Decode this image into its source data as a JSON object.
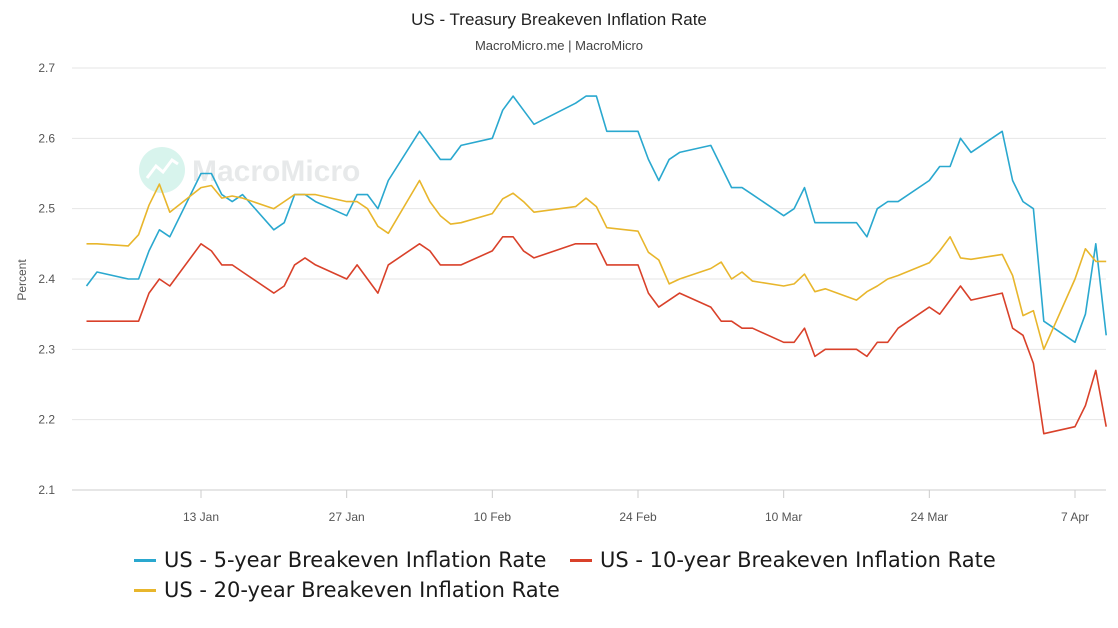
{
  "chart_data": {
    "type": "line",
    "title": "US - Treasury Breakeven Inflation Rate",
    "subtitle": "MacroMicro.me | MacroMicro",
    "watermark": "MacroMicro",
    "xlabel": "",
    "ylabel": "Percent",
    "ylim": [
      2.1,
      2.7
    ],
    "yticks": [
      "2.1",
      "2.2",
      "2.3",
      "2.4",
      "2.5",
      "2.6",
      "2.7"
    ],
    "xticks": [
      "13 Jan",
      "27 Jan",
      "10 Feb",
      "24 Feb",
      "10 Mar",
      "24 Mar",
      "7 Apr"
    ],
    "grid": true,
    "legend_position": "bottom",
    "x": [
      "2025-01-02",
      "2025-01-03",
      "2025-01-06",
      "2025-01-07",
      "2025-01-08",
      "2025-01-09",
      "2025-01-10",
      "2025-01-13",
      "2025-01-14",
      "2025-01-15",
      "2025-01-16",
      "2025-01-17",
      "2025-01-20",
      "2025-01-21",
      "2025-01-22",
      "2025-01-23",
      "2025-01-24",
      "2025-01-27",
      "2025-01-28",
      "2025-01-29",
      "2025-01-30",
      "2025-01-31",
      "2025-02-03",
      "2025-02-04",
      "2025-02-05",
      "2025-02-06",
      "2025-02-07",
      "2025-02-10",
      "2025-02-11",
      "2025-02-12",
      "2025-02-13",
      "2025-02-14",
      "2025-02-18",
      "2025-02-19",
      "2025-02-20",
      "2025-02-21",
      "2025-02-24",
      "2025-02-25",
      "2025-02-26",
      "2025-02-27",
      "2025-02-28",
      "2025-03-03",
      "2025-03-04",
      "2025-03-05",
      "2025-03-06",
      "2025-03-07",
      "2025-03-10",
      "2025-03-11",
      "2025-03-12",
      "2025-03-13",
      "2025-03-14",
      "2025-03-17",
      "2025-03-18",
      "2025-03-19",
      "2025-03-20",
      "2025-03-21",
      "2025-03-24",
      "2025-03-25",
      "2025-03-26",
      "2025-03-27",
      "2025-03-28",
      "2025-03-31",
      "2025-04-01",
      "2025-04-02",
      "2025-04-03",
      "2025-04-04",
      "2025-04-07",
      "2025-04-08",
      "2025-04-09",
      "2025-04-10"
    ],
    "series": [
      {
        "name": "US - 5-year Breakeven Inflation Rate",
        "color": "#2aa8cf",
        "values": [
          2.39,
          2.41,
          2.4,
          2.4,
          2.44,
          2.47,
          2.46,
          2.55,
          2.55,
          2.52,
          2.51,
          2.52,
          2.47,
          2.48,
          2.52,
          2.52,
          2.51,
          2.49,
          2.52,
          2.52,
          2.5,
          2.54,
          2.61,
          2.59,
          2.57,
          2.57,
          2.59,
          2.6,
          2.64,
          2.66,
          2.64,
          2.62,
          2.65,
          2.66,
          2.66,
          2.61,
          2.61,
          2.57,
          2.54,
          2.57,
          2.58,
          2.59,
          2.56,
          2.53,
          2.53,
          2.52,
          2.49,
          2.5,
          2.53,
          2.48,
          2.48,
          2.48,
          2.46,
          2.5,
          2.51,
          2.51,
          2.54,
          2.56,
          2.56,
          2.6,
          2.58,
          2.61,
          2.54,
          2.51,
          2.5,
          2.34,
          2.31,
          2.35,
          2.45,
          2.32
        ]
      },
      {
        "name": "US - 10-year Breakeven Inflation Rate",
        "color": "#d9412a",
        "values": [
          2.34,
          2.34,
          2.34,
          2.34,
          2.38,
          2.4,
          2.39,
          2.45,
          2.44,
          2.42,
          2.42,
          2.41,
          2.38,
          2.39,
          2.42,
          2.43,
          2.42,
          2.4,
          2.42,
          2.4,
          2.38,
          2.42,
          2.45,
          2.44,
          2.42,
          2.42,
          2.42,
          2.44,
          2.46,
          2.46,
          2.44,
          2.43,
          2.45,
          2.45,
          2.45,
          2.42,
          2.42,
          2.38,
          2.36,
          2.37,
          2.38,
          2.36,
          2.34,
          2.34,
          2.33,
          2.33,
          2.31,
          2.31,
          2.33,
          2.29,
          2.3,
          2.3,
          2.29,
          2.31,
          2.31,
          2.33,
          2.36,
          2.35,
          2.37,
          2.39,
          2.37,
          2.38,
          2.33,
          2.32,
          2.28,
          2.18,
          2.19,
          2.22,
          2.27,
          2.19
        ]
      },
      {
        "name": "US - 20-year Breakeven Inflation Rate",
        "color": "#e8b62c",
        "values": [
          2.45,
          2.45,
          2.447,
          2.463,
          2.505,
          2.535,
          2.495,
          2.53,
          2.533,
          2.515,
          2.518,
          2.515,
          2.5,
          2.51,
          2.52,
          2.52,
          2.52,
          2.51,
          2.51,
          2.5,
          2.475,
          2.465,
          2.54,
          2.51,
          2.49,
          2.478,
          2.48,
          2.493,
          2.514,
          2.522,
          2.51,
          2.495,
          2.503,
          2.515,
          2.503,
          2.473,
          2.468,
          2.438,
          2.427,
          2.393,
          2.4,
          2.415,
          2.424,
          2.4,
          2.41,
          2.397,
          2.39,
          2.393,
          2.407,
          2.382,
          2.386,
          2.37,
          2.382,
          2.39,
          2.4,
          2.405,
          2.423,
          2.44,
          2.46,
          2.43,
          2.428,
          2.435,
          2.405,
          2.348,
          2.355,
          2.3,
          2.4,
          2.443,
          2.425,
          2.425
        ]
      }
    ]
  }
}
